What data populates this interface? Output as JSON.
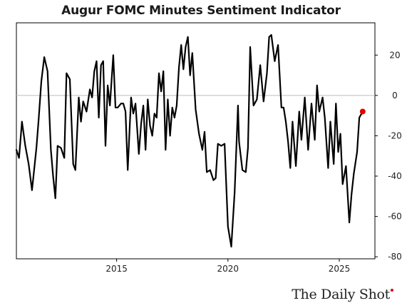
{
  "chart_data": {
    "type": "line",
    "title": "Augur FOMC Minutes Sentiment Indicator",
    "xlabel": "",
    "ylabel": "",
    "x_ticks": [
      "2015",
      "2020",
      "2025"
    ],
    "y_ticks": [
      "20",
      "0",
      "-20",
      "-40",
      "-60",
      "-80"
    ],
    "xlim": [
      2010.5,
      2026.6
    ],
    "ylim": [
      -81,
      36
    ],
    "y_axis_position": "right",
    "grid": false,
    "zero_line": true,
    "line_color": "#000000",
    "last_point_color": "#e00000",
    "series": [
      {
        "x": [
          2010.5,
          2010.62,
          2010.75,
          2010.9,
          2011.05,
          2011.2,
          2011.4,
          2011.5,
          2011.62,
          2011.75,
          2011.9,
          2012.05,
          2012.15,
          2012.25,
          2012.35,
          2012.5,
          2012.65,
          2012.75,
          2012.9,
          2013.05,
          2013.15,
          2013.3,
          2013.4,
          2013.5,
          2013.65,
          2013.8,
          2013.9,
          2014.0,
          2014.1,
          2014.2,
          2014.3,
          2014.4,
          2014.5,
          2014.6,
          2014.7,
          2014.85,
          2014.95,
          2015.05,
          2015.2,
          2015.3,
          2015.4,
          2015.5,
          2015.65,
          2015.75,
          2015.85,
          2016.0,
          2016.1,
          2016.2,
          2016.3,
          2016.4,
          2016.5,
          2016.6,
          2016.7,
          2016.8,
          2016.9,
          2017.0,
          2017.1,
          2017.2,
          2017.3,
          2017.4,
          2017.5,
          2017.6,
          2017.7,
          2017.8,
          2017.9,
          2018.0,
          2018.1,
          2018.2,
          2018.3,
          2018.4,
          2018.55,
          2018.7,
          2018.85,
          2018.95,
          2019.05,
          2019.2,
          2019.35,
          2019.45,
          2019.55,
          2019.7,
          2019.85,
          2020.0,
          2020.15,
          2020.3,
          2020.45,
          2020.5,
          2020.65,
          2020.8,
          2020.9,
          2021.0,
          2021.15,
          2021.3,
          2021.45,
          2021.6,
          2021.75,
          2021.85,
          2021.95,
          2022.1,
          2022.25,
          2022.4,
          2022.5,
          2022.6,
          2022.7,
          2022.8,
          2022.9,
          2023.05,
          2023.2,
          2023.3,
          2023.45,
          2023.6,
          2023.75,
          2023.9,
          2024.0,
          2024.1,
          2024.25,
          2024.35,
          2024.5,
          2024.6,
          2024.75,
          2024.85,
          2024.95,
          2025.05,
          2025.15,
          2025.3,
          2025.45,
          2025.55,
          2025.65,
          2025.8,
          2025.9,
          2026.05
        ],
        "y": [
          -27,
          -31,
          -13,
          -25,
          -34,
          -47,
          -26,
          -12,
          7,
          19,
          12,
          -27,
          -40,
          -51,
          -25,
          -26,
          -31,
          11,
          8,
          -34,
          -37,
          -1,
          -13,
          -3,
          -8,
          3,
          -1,
          12,
          17,
          -11,
          15,
          17,
          -25,
          5,
          -5,
          20,
          -6,
          -6,
          -4,
          -4,
          -8,
          -37,
          -1,
          -9,
          -4,
          -29,
          -14,
          -5,
          -27,
          -2,
          -15,
          -20,
          -9,
          -11,
          11,
          2,
          12,
          -27,
          -2,
          -20,
          -6,
          -11,
          -5,
          14,
          25,
          13,
          24,
          29,
          10,
          21,
          -7,
          -19,
          -27,
          -18,
          -38,
          -37,
          -42,
          -41,
          -24,
          -25,
          -24,
          -65,
          -75,
          -48,
          -5,
          -23,
          -37,
          -38,
          -26,
          24,
          -5,
          -2,
          15,
          -3,
          11,
          29,
          30,
          17,
          25,
          -6,
          -6,
          -13,
          -23,
          -36,
          -13,
          -35,
          -8,
          -22,
          -1,
          -27,
          -4,
          -22,
          5,
          -8,
          -1,
          -11,
          -36,
          -13,
          -34,
          -4,
          -28,
          -19,
          -44,
          -35,
          -63,
          -49,
          -39,
          -28,
          -11,
          -8
        ]
      }
    ]
  },
  "watermark": {
    "text": "The Daily Shot"
  }
}
